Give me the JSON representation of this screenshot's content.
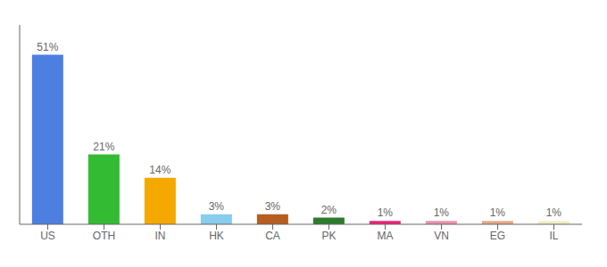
{
  "chart_data": {
    "type": "bar",
    "categories": [
      "US",
      "OTH",
      "IN",
      "HK",
      "CA",
      "PK",
      "MA",
      "VN",
      "EG",
      "IL"
    ],
    "values": [
      51,
      21,
      14,
      3,
      3,
      2,
      1,
      1,
      1,
      1
    ],
    "value_labels": [
      "51%",
      "21%",
      "14%",
      "3%",
      "3%",
      "2%",
      "1%",
      "1%",
      "1%",
      "1%"
    ],
    "colors": [
      "#4d7fe0",
      "#33bb33",
      "#f5a800",
      "#88ccee",
      "#b85c20",
      "#2d7a2d",
      "#ee2277",
      "#f090aa",
      "#e8a888",
      "#f0eec8"
    ],
    "ylim": [
      0,
      60
    ],
    "data_labels": true,
    "tick_labels": "x",
    "grid": false
  }
}
